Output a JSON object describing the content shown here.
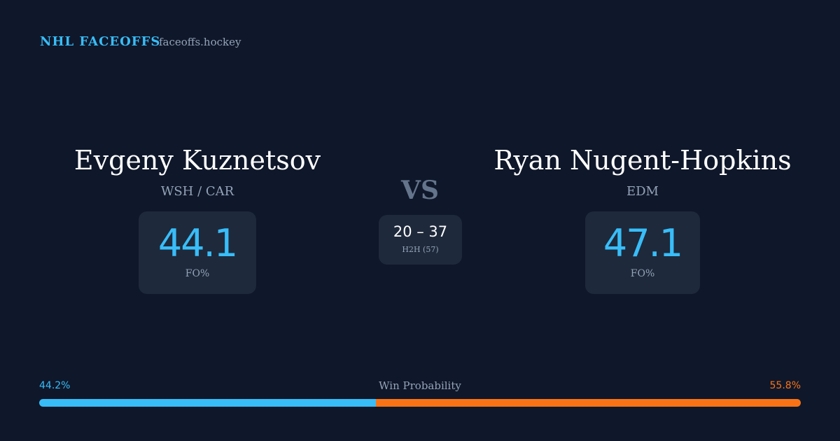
{
  "header": {
    "title": "NHL FACEOFFS",
    "site": "faceoffs.hockey"
  },
  "players": [
    {
      "name": "Evgeny Kuznetsov",
      "teams": "WSH / CAR",
      "stat": "44.1",
      "stat_label": "FO%"
    },
    {
      "name": "Ryan Nugent-Hopkins",
      "teams": "EDM",
      "stat": "47.1",
      "stat_label": "FO%"
    }
  ],
  "versus": "VS",
  "h2h": {
    "score": "20 – 37",
    "label": "H2H (57)"
  },
  "win_probability": {
    "label": "Win Probability",
    "values": [
      44.2,
      55.8
    ],
    "value_labels": [
      "44.2%",
      "55.8%"
    ],
    "colors": [
      "#38bdf8",
      "#f97316"
    ]
  }
}
